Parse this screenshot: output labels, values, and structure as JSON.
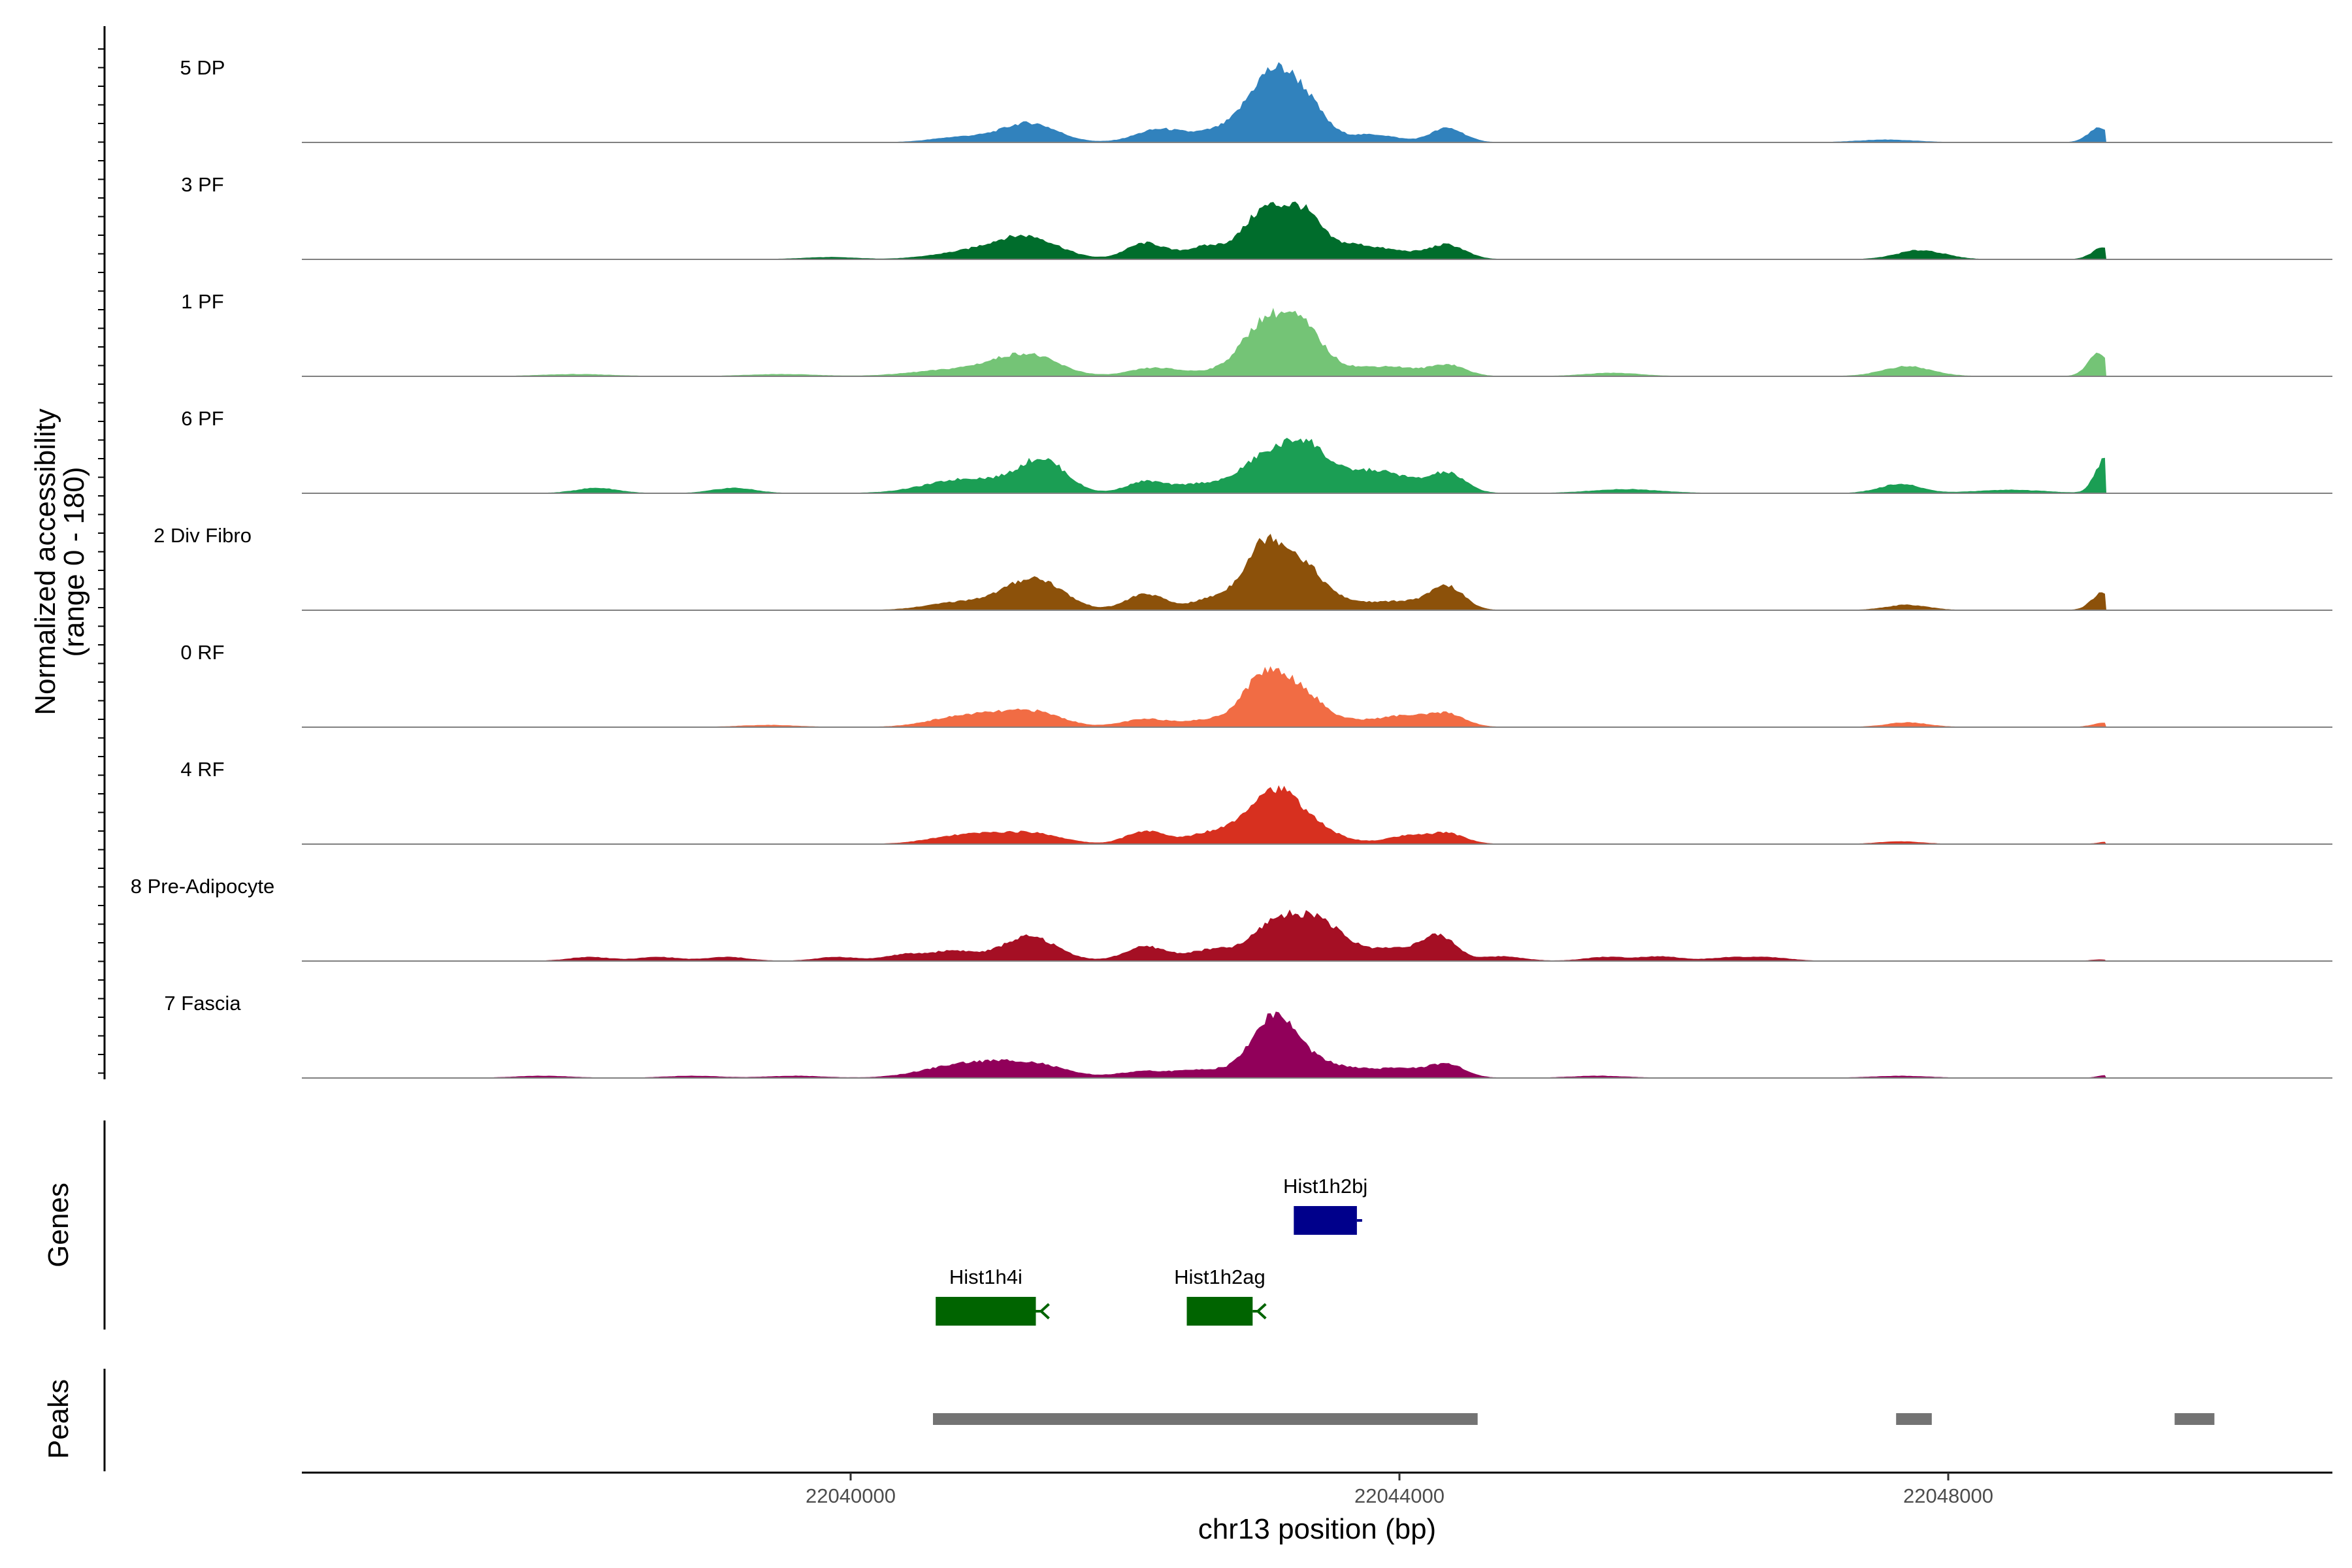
{
  "chart_data": {
    "type": "area",
    "title": "",
    "xlabel": "chr13 position (bp)",
    "ylabel": "Normalized accessibility",
    "ylabel_sub": "(range 0 - 180)",
    "ylim": [
      0,
      180
    ],
    "xlim": [
      22036000,
      22050800
    ],
    "x_ticks": [
      22040000,
      22044000,
      22048000
    ],
    "x_tick_labels": [
      "22040000",
      "22044000",
      "22048000"
    ],
    "data_end": 22049150,
    "series": [
      {
        "name": "5 DP",
        "color": "#3182bd",
        "peaks": [
          [
            22040800,
            8,
            200
          ],
          [
            22041300,
            30,
            200
          ],
          [
            22042250,
            20,
            170
          ],
          [
            22042700,
            18,
            180
          ],
          [
            22043050,
            95,
            160
          ],
          [
            22043300,
            60,
            150
          ],
          [
            22043800,
            12,
            180
          ],
          [
            22044350,
            22,
            120
          ],
          [
            22047550,
            4,
            200
          ],
          [
            22049100,
            22,
            80
          ]
        ]
      },
      {
        "name": "3 PF",
        "color": "#006d2c",
        "peaks": [
          [
            22039850,
            3,
            200
          ],
          [
            22040700,
            6,
            200
          ],
          [
            22041000,
            10,
            200
          ],
          [
            22041300,
            33,
            220
          ],
          [
            22042150,
            25,
            140
          ],
          [
            22042600,
            20,
            160
          ],
          [
            22043020,
            75,
            150
          ],
          [
            22043300,
            65,
            130
          ],
          [
            22043650,
            22,
            180
          ],
          [
            22044000,
            10,
            160
          ],
          [
            22044350,
            22,
            130
          ],
          [
            22047800,
            14,
            170
          ],
          [
            22049130,
            18,
            80
          ]
        ]
      },
      {
        "name": "1 PF",
        "color": "#74c476",
        "peaks": [
          [
            22038000,
            3,
            250
          ],
          [
            22039500,
            3,
            250
          ],
          [
            22040600,
            6,
            250
          ],
          [
            22041000,
            10,
            250
          ],
          [
            22041300,
            30,
            220
          ],
          [
            22042200,
            12,
            170
          ],
          [
            22042600,
            6,
            200
          ],
          [
            22043020,
            80,
            170
          ],
          [
            22043300,
            65,
            150
          ],
          [
            22043700,
            12,
            200
          ],
          [
            22044000,
            10,
            150
          ],
          [
            22044350,
            18,
            130
          ],
          [
            22045550,
            5,
            200
          ],
          [
            22047700,
            15,
            180
          ],
          [
            22049100,
            35,
            80
          ]
        ]
      },
      {
        "name": "6 PF",
        "color": "#1b9e54",
        "peaks": [
          [
            22038150,
            8,
            150
          ],
          [
            22039150,
            8,
            150
          ],
          [
            22040700,
            12,
            250
          ],
          [
            22041000,
            15,
            250
          ],
          [
            22041400,
            50,
            170
          ],
          [
            22042150,
            18,
            140
          ],
          [
            22042550,
            14,
            170
          ],
          [
            22043020,
            55,
            180
          ],
          [
            22043320,
            65,
            150
          ],
          [
            22043700,
            30,
            200
          ],
          [
            22044000,
            18,
            170
          ],
          [
            22044350,
            30,
            130
          ],
          [
            22045650,
            6,
            250
          ],
          [
            22047650,
            14,
            150
          ],
          [
            22048450,
            5,
            250
          ],
          [
            22049140,
            52,
            70
          ]
        ]
      },
      {
        "name": "2 Div Fibro",
        "color": "#8c510a",
        "peaks": [
          [
            22040700,
            8,
            200
          ],
          [
            22041000,
            10,
            200
          ],
          [
            22041350,
            48,
            200
          ],
          [
            22042150,
            25,
            140
          ],
          [
            22042650,
            18,
            160
          ],
          [
            22043020,
            100,
            150
          ],
          [
            22043300,
            60,
            150
          ],
          [
            22043650,
            12,
            200
          ],
          [
            22044050,
            12,
            160
          ],
          [
            22044350,
            36,
            120
          ],
          [
            22047700,
            8,
            150
          ],
          [
            22049130,
            28,
            80
          ]
        ]
      },
      {
        "name": "0 RF",
        "color": "#f16c44",
        "peaks": [
          [
            22039400,
            3,
            200
          ],
          [
            22040700,
            10,
            200
          ],
          [
            22041000,
            15,
            200
          ],
          [
            22041350,
            22,
            200
          ],
          [
            22042150,
            12,
            170
          ],
          [
            22042600,
            10,
            180
          ],
          [
            22043020,
            80,
            160
          ],
          [
            22043300,
            45,
            150
          ],
          [
            22043700,
            10,
            200
          ],
          [
            22044050,
            15,
            150
          ],
          [
            22044350,
            20,
            130
          ],
          [
            22047700,
            7,
            150
          ],
          [
            22049130,
            6,
            80
          ]
        ]
      },
      {
        "name": "4 RF",
        "color": "#d7301f",
        "peaks": [
          [
            22040700,
            8,
            200
          ],
          [
            22041000,
            12,
            200
          ],
          [
            22041350,
            15,
            200
          ],
          [
            22042150,
            20,
            140
          ],
          [
            22042600,
            15,
            160
          ],
          [
            22043080,
            82,
            200
          ],
          [
            22043400,
            15,
            200
          ],
          [
            22044050,
            12,
            150
          ],
          [
            22044350,
            16,
            130
          ],
          [
            22047650,
            4,
            150
          ],
          [
            22049150,
            3,
            60
          ]
        ]
      },
      {
        "name": "8 Pre-Adipocyte",
        "color": "#a50f24",
        "peaks": [
          [
            22038100,
            6,
            150
          ],
          [
            22038600,
            6,
            150
          ],
          [
            22039100,
            6,
            150
          ],
          [
            22039900,
            6,
            150
          ],
          [
            22040400,
            10,
            150
          ],
          [
            22040750,
            15,
            150
          ],
          [
            22041300,
            38,
            200
          ],
          [
            22042150,
            22,
            150
          ],
          [
            22042650,
            18,
            180
          ],
          [
            22043100,
            60,
            160
          ],
          [
            22043400,
            55,
            150
          ],
          [
            22043700,
            18,
            200
          ],
          [
            22044050,
            15,
            150
          ],
          [
            22044300,
            36,
            120
          ],
          [
            22044750,
            7,
            150
          ],
          [
            22045500,
            6,
            150
          ],
          [
            22045900,
            7,
            150
          ],
          [
            22046400,
            5,
            150
          ],
          [
            22046700,
            5,
            150
          ],
          [
            22049100,
            2,
            60
          ]
        ]
      },
      {
        "name": "7 Fascia",
        "color": "#91005a",
        "peaks": [
          [
            22037750,
            3,
            200
          ],
          [
            22038850,
            3,
            200
          ],
          [
            22039600,
            3,
            200
          ],
          [
            22040700,
            12,
            250
          ],
          [
            22041000,
            15,
            250
          ],
          [
            22041350,
            18,
            230
          ],
          [
            22042150,
            10,
            200
          ],
          [
            22042600,
            12,
            180
          ],
          [
            22043080,
            92,
            160
          ],
          [
            22043350,
            20,
            180
          ],
          [
            22043700,
            12,
            200
          ],
          [
            22044050,
            12,
            150
          ],
          [
            22044350,
            20,
            130
          ],
          [
            22045450,
            3,
            200
          ],
          [
            22047650,
            3,
            200
          ],
          [
            22049150,
            4,
            60
          ]
        ]
      }
    ],
    "genes": [
      {
        "name": "Hist1h2bj",
        "start": 22043230,
        "end": 22043690,
        "color": "#00008b",
        "strand": "+",
        "row": 0
      },
      {
        "name": "Hist1h4i",
        "start": 22040620,
        "end": 22041350,
        "color": "#006400",
        "strand": "-",
        "row": 1
      },
      {
        "name": "Hist1h2ag",
        "start": 22042450,
        "end": 22042930,
        "color": "#006400",
        "strand": "-",
        "row": 1
      }
    ],
    "peaks_track": [
      {
        "start": 22040600,
        "end": 22044570
      },
      {
        "start": 22047620,
        "end": 22047880
      },
      {
        "start": 22049650,
        "end": 22049940
      }
    ],
    "track_titles": {
      "genes": "Genes",
      "peaks": "Peaks"
    }
  }
}
